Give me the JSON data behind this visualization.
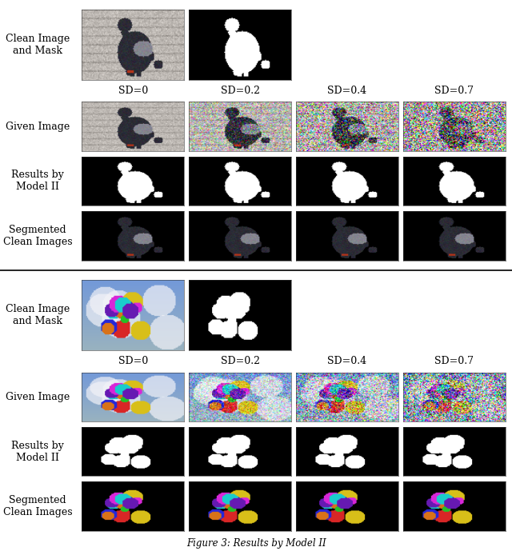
{
  "caption": "Figure 3: Results by Model II",
  "sd_labels": [
    "SD=0",
    "SD=0.2",
    "SD=0.4",
    "SD=0.7"
  ],
  "row_labels_top": [
    "Clean Image\nand Mask",
    "Given Image",
    "Results by\nModel II",
    "Segmented\nClean Images"
  ],
  "row_labels_bot": [
    "Clean Image\nand Mask",
    "Given Image",
    "Results by\nModel II",
    "Segmented\nClean Images"
  ],
  "font_size_labels": 9,
  "font_size_sd": 9,
  "font_size_caption": 9
}
